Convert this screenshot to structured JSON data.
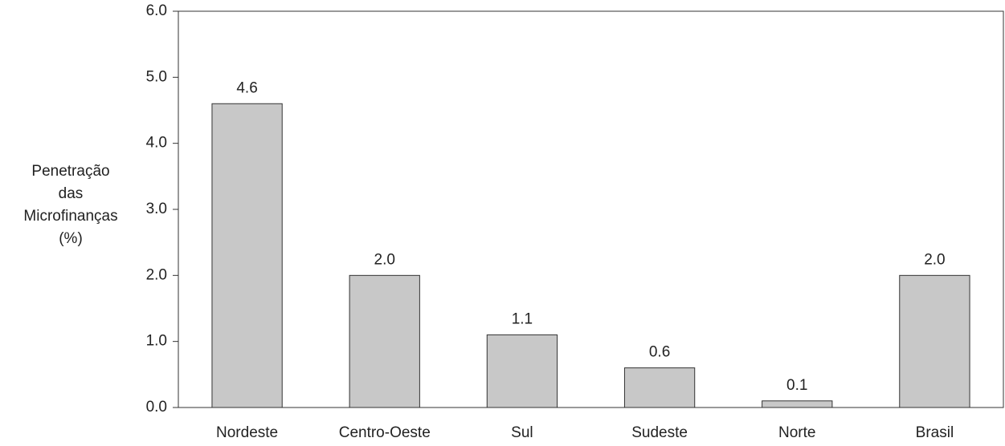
{
  "chart_data": {
    "type": "bar",
    "y_label": [
      "Penetração",
      "das",
      "Microfinanças",
      "(%)"
    ],
    "categories": [
      "Nordeste",
      "Centro-Oeste",
      "Sul",
      "Sudeste",
      "Norte",
      "Brasil"
    ],
    "values": [
      4.6,
      2.0,
      1.1,
      0.6,
      0.1,
      2.0
    ],
    "value_labels": [
      "4.6",
      "2.0",
      "1.1",
      "0.6",
      "0.1",
      "2.0"
    ],
    "color": "#c8c8c8",
    "ylim": [
      0,
      6
    ],
    "yticks": [
      {
        "value": 0,
        "label": "0.0"
      },
      {
        "value": 1,
        "label": "1.0"
      },
      {
        "value": 2,
        "label": "2.0"
      },
      {
        "value": 3,
        "label": "3.0"
      },
      {
        "value": 4,
        "label": "4.0"
      },
      {
        "value": 5,
        "label": "5.0"
      },
      {
        "value": 6,
        "label": "6.0"
      }
    ]
  }
}
